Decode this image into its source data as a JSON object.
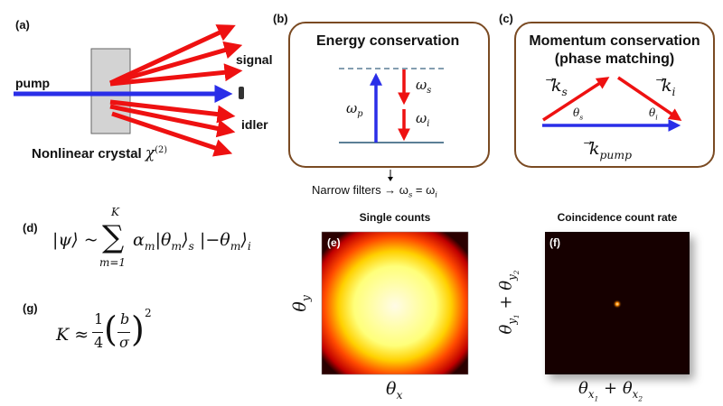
{
  "panel_a": {
    "label": "(a)",
    "pump": "pump",
    "signal": "signal",
    "idler": "idler",
    "crystal": "Nonlinear crystal",
    "chi": "χ",
    "chi_sup": "(2)"
  },
  "panel_b": {
    "label": "(b)",
    "title": "Energy conservation",
    "omega_p": "ω",
    "p": "p",
    "omega_s": "ω",
    "s": "s",
    "omega_i": "ω",
    "i": "i",
    "note": "Narrow filters → ω",
    "note_s": "s",
    "note_eq": " = ω",
    "note_i": "i"
  },
  "panel_c": {
    "label": "(c)",
    "title1": "Momentum conservation",
    "title2": "(phase matching)",
    "k": "k",
    "ks": "s",
    "ki": "i",
    "kpump": "pump",
    "theta": "θ",
    "ts": "s",
    "ti": "i"
  },
  "panel_d": {
    "label": "(d)",
    "lhs": "|ψ⟩ ~",
    "sum": "∑",
    "upper": "K",
    "lower": "m=1",
    "term": "α",
    "m": "m",
    "ket1": "|θ",
    "ket1_close": "⟩",
    "s": "s",
    "ket2": "|−θ",
    "ket2_close": "⟩",
    "i": "i"
  },
  "panel_g": {
    "label": "(g)",
    "lhs": "K ≈",
    "num": "1",
    "den": "4",
    "inner_num": "b",
    "inner_den": "σ",
    "exp": "2"
  },
  "panel_e": {
    "label": "(e)",
    "title": "Single counts",
    "ylabel": "θ",
    "ysub": "y",
    "xlabel": "θ",
    "xsub": "x"
  },
  "panel_f": {
    "label": "(f)",
    "title": "Coincidence count rate",
    "ylabel": "θ",
    "ysub1": "y",
    "ysub1n": "1",
    "plus": " + ",
    "ysub2": "y",
    "ysub2n": "2",
    "xlabel": "θ",
    "xsub1": "x",
    "xsub1n": "1",
    "xsub2": "x",
    "xsub2n": "2"
  },
  "colors": {
    "red": "#ee1111",
    "blue": "#2a2ee8",
    "brown": "#7a4a22",
    "level": "#5b7f96"
  }
}
